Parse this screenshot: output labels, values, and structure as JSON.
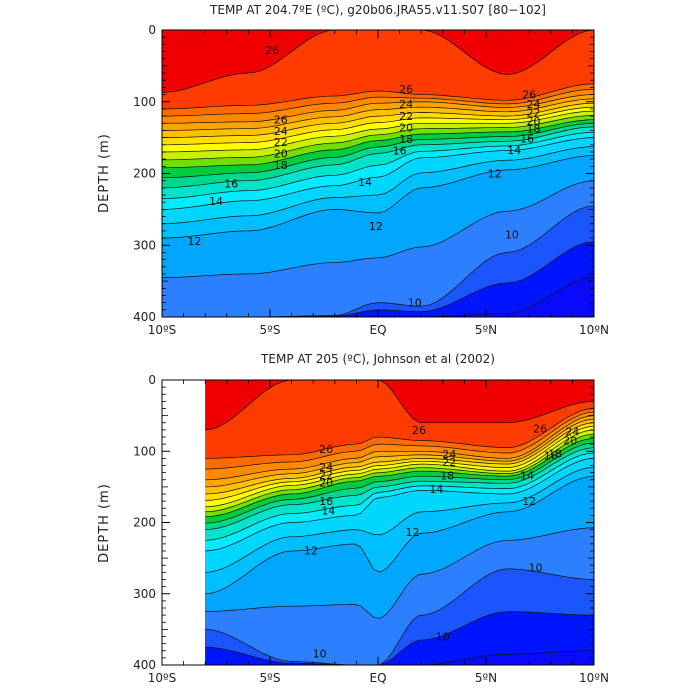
{
  "chart_data": [
    {
      "type": "contour",
      "title": "TEMP AT 204.7ºE (ºC), g20b06.JRA55.v11.S07 [80−102]",
      "ylabel": "DEPTH (m)",
      "xlim": [
        -10,
        10
      ],
      "ylim": [
        400,
        0
      ],
      "x_ticks": [
        "10ºS",
        "5ºS",
        "EQ",
        "5ºN",
        "10ºN"
      ],
      "y_ticks": [
        "0",
        "100",
        "200",
        "300",
        "400"
      ],
      "data_extent_x": [
        -10,
        10
      ],
      "contour_interval": 1,
      "contour_labels": [
        {
          "text": "26",
          "lat": -4.9,
          "depth": 28
        },
        {
          "text": "26",
          "lat": 1.3,
          "depth": 82
        },
        {
          "text": "26",
          "lat": 7.0,
          "depth": 90
        },
        {
          "text": "26",
          "lat": -4.5,
          "depth": 125
        },
        {
          "text": "24",
          "lat": 1.3,
          "depth": 103
        },
        {
          "text": "24",
          "lat": 7.2,
          "depth": 103
        },
        {
          "text": "24",
          "lat": -4.5,
          "depth": 141
        },
        {
          "text": "22",
          "lat": 1.3,
          "depth": 120
        },
        {
          "text": "22",
          "lat": 7.2,
          "depth": 115
        },
        {
          "text": "22",
          "lat": -4.5,
          "depth": 156
        },
        {
          "text": "20",
          "lat": 1.3,
          "depth": 136
        },
        {
          "text": "20",
          "lat": 7.2,
          "depth": 127
        },
        {
          "text": "20",
          "lat": -4.5,
          "depth": 172
        },
        {
          "text": "18",
          "lat": 1.3,
          "depth": 152
        },
        {
          "text": "18",
          "lat": 7.2,
          "depth": 137
        },
        {
          "text": "18",
          "lat": -4.5,
          "depth": 188
        },
        {
          "text": "16",
          "lat": 1.0,
          "depth": 168
        },
        {
          "text": "16",
          "lat": 6.9,
          "depth": 151
        },
        {
          "text": "16",
          "lat": -6.8,
          "depth": 214
        },
        {
          "text": "14",
          "lat": 6.3,
          "depth": 167
        },
        {
          "text": "14",
          "lat": -0.6,
          "depth": 212
        },
        {
          "text": "14",
          "lat": -7.5,
          "depth": 238
        },
        {
          "text": "12",
          "lat": 5.4,
          "depth": 200
        },
        {
          "text": "12",
          "lat": -0.1,
          "depth": 273
        },
        {
          "text": "12",
          "lat": -8.5,
          "depth": 294
        },
        {
          "text": "10",
          "lat": 6.2,
          "depth": 285
        },
        {
          "text": "10",
          "lat": 1.7,
          "depth": 380
        }
      ],
      "temperature_profile": {
        "lat": [
          -10,
          -6,
          -2,
          0,
          2,
          6,
          10
        ],
        "rows": [
          {
            "t": 27,
            "depth": [
              87,
              60,
              0,
              0,
              0,
              62,
              0
            ]
          },
          {
            "t": 26,
            "depth": [
              110,
              105,
              92,
              85,
              90,
              98,
              75
            ]
          },
          {
            "t": 24,
            "depth": [
              130,
              128,
              112,
              102,
              100,
              108,
              90
            ]
          },
          {
            "t": 22,
            "depth": [
              150,
              147,
              130,
              120,
              115,
              120,
              102
            ]
          },
          {
            "t": 20,
            "depth": [
              170,
              167,
              148,
              138,
              130,
              130,
              113
            ]
          },
          {
            "t": 18,
            "depth": [
              192,
              188,
              167,
              154,
              145,
              142,
              125
            ]
          },
          {
            "t": 16,
            "depth": [
              220,
              210,
              188,
              172,
              160,
              155,
              135
            ]
          },
          {
            "t": 14,
            "depth": [
              250,
              238,
              217,
              205,
              178,
              168,
              150
            ]
          },
          {
            "t": 12,
            "depth": [
              290,
              280,
              250,
              255,
              220,
              195,
              175
            ]
          },
          {
            "t": 10,
            "depth": [
              400,
              400,
              398,
              380,
              385,
              310,
              245
            ]
          },
          {
            "t": 8,
            "depth": [
              400,
              400,
              400,
              400,
              400,
              395,
              345
            ]
          }
        ]
      }
    },
    {
      "type": "contour",
      "title": "TEMP AT 205 (ºC), Johnson et al (2002)",
      "ylabel": "DEPTH (m)",
      "xlim": [
        -10,
        10
      ],
      "ylim": [
        400,
        0
      ],
      "x_ticks": [
        "10ºS",
        "5ºS",
        "EQ",
        "5ºN",
        "10ºN"
      ],
      "y_ticks": [
        "0",
        "100",
        "200",
        "300",
        "400"
      ],
      "data_extent_x": [
        -8,
        10
      ],
      "contour_interval": 1,
      "contour_labels": [
        {
          "text": "26",
          "lat": 1.9,
          "depth": 70
        },
        {
          "text": "26",
          "lat": -2.4,
          "depth": 97
        },
        {
          "text": "26",
          "lat": 7.5,
          "depth": 68
        },
        {
          "text": "24",
          "lat": -2.4,
          "depth": 122
        },
        {
          "text": "24",
          "lat": 9.0,
          "depth": 72
        },
        {
          "text": "24",
          "lat": 3.3,
          "depth": 104
        },
        {
          "text": "22",
          "lat": -2.4,
          "depth": 133
        },
        {
          "text": "22",
          "lat": 3.3,
          "depth": 115
        },
        {
          "text": "20",
          "lat": -2.4,
          "depth": 144
        },
        {
          "text": "20",
          "lat": 8.9,
          "depth": 85
        },
        {
          "text": "18",
          "lat": 3.2,
          "depth": 134
        },
        {
          "text": "18",
          "lat": 8.2,
          "depth": 103
        },
        {
          "text": "16",
          "lat": -2.4,
          "depth": 170
        },
        {
          "text": "16",
          "lat": 8.0,
          "depth": 106
        },
        {
          "text": "14",
          "lat": -2.3,
          "depth": 183
        },
        {
          "text": "14",
          "lat": 2.7,
          "depth": 153
        },
        {
          "text": "14",
          "lat": 6.9,
          "depth": 134
        },
        {
          "text": "12",
          "lat": -3.1,
          "depth": 239
        },
        {
          "text": "12",
          "lat": 1.6,
          "depth": 213
        },
        {
          "text": "12",
          "lat": 7.0,
          "depth": 170
        },
        {
          "text": "10",
          "lat": 7.3,
          "depth": 263
        },
        {
          "text": "10",
          "lat": 3.0,
          "depth": 360
        },
        {
          "text": "10",
          "lat": -2.7,
          "depth": 384
        }
      ],
      "temperature_profile": {
        "lat": [
          -8,
          -4,
          -1,
          0,
          2,
          6,
          10
        ],
        "rows": [
          {
            "t": 27,
            "depth": [
              70,
              0,
              0,
              0,
              60,
              60,
              30
            ]
          },
          {
            "t": 26,
            "depth": [
              110,
              105,
              90,
              80,
              85,
              95,
              40
            ]
          },
          {
            "t": 24,
            "depth": [
              140,
              125,
              110,
              100,
              100,
              110,
              50
            ]
          },
          {
            "t": 22,
            "depth": [
              160,
              138,
              122,
              115,
              110,
              118,
              60
            ]
          },
          {
            "t": 20,
            "depth": [
              178,
              148,
              132,
              125,
              118,
              128,
              70
            ]
          },
          {
            "t": 18,
            "depth": [
              192,
              160,
              142,
              135,
              128,
              135,
              82
            ]
          },
          {
            "t": 16,
            "depth": [
              210,
              175,
              162,
              150,
              142,
              145,
              95
            ]
          },
          {
            "t": 14,
            "depth": [
              240,
              200,
              190,
              165,
              155,
              160,
              110
            ]
          },
          {
            "t": 12,
            "depth": [
              300,
              240,
              230,
              270,
              215,
              185,
              135
            ]
          },
          {
            "t": 10,
            "depth": [
              350,
              395,
              400,
              400,
              330,
              265,
              280
            ]
          },
          {
            "t": 8,
            "depth": [
              400,
              400,
              400,
              400,
              400,
              385,
              380
            ]
          }
        ]
      }
    }
  ]
}
